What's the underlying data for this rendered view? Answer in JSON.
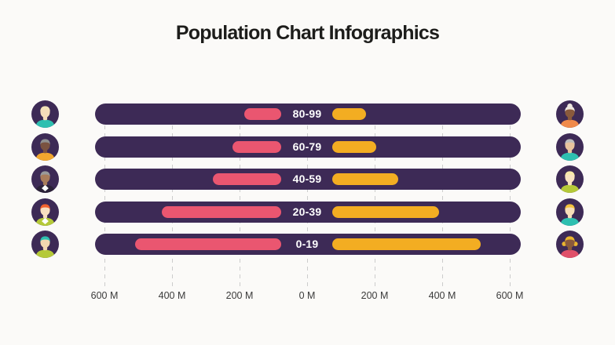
{
  "title": "Population Chart Infographics",
  "colors": {
    "page_bg": "#fbfaf8",
    "bar_bg": "#3d2a56",
    "left_bar": "#ea5670",
    "right_bar": "#f3ad22",
    "bar_label_text": "#ffffff",
    "grid": "#cccccc",
    "title_text": "#1d1d1b",
    "axis_text": "#3b3b3b",
    "avatar_bg": "#3d2a56"
  },
  "chart_data": {
    "type": "bar",
    "variant": "population-pyramid-horizontal",
    "title": "Population Chart Infographics",
    "categories": [
      "80-99",
      "60-79",
      "40-59",
      "20-39",
      "0-19"
    ],
    "series": [
      {
        "name": "left-pink",
        "color": "#ea5670",
        "values": [
          185,
          220,
          280,
          430,
          510
        ]
      },
      {
        "name": "right-yellow",
        "color": "#f3ad22",
        "values": [
          175,
          205,
          270,
          390,
          515
        ]
      }
    ],
    "unit": "M",
    "x_tick_labels": [
      "600 M",
      "400 M",
      "200 M",
      "0 M",
      "200 M",
      "400 M",
      "600 M"
    ],
    "x_tick_values": [
      -600,
      -400,
      -200,
      0,
      200,
      400,
      600
    ],
    "xlim": [
      -650,
      650
    ],
    "grid": "dashed-vertical",
    "legend": "none"
  },
  "avatars": {
    "left": [
      {
        "name": "older-blonde-woman",
        "bg": "#3d2a56",
        "hair": "#f2e3b8",
        "skin": "#f6ddba",
        "shirt": "#2ebfb0",
        "collar": null,
        "bun": false,
        "pigtails": false
      },
      {
        "name": "older-man-beard",
        "bg": "#3d2a56",
        "hair": "#8f8f8f",
        "skin": "#7a5240",
        "shirt": "#f2a72e",
        "collar": null,
        "bun": false,
        "pigtails": false
      },
      {
        "name": "gray-hair-woman-jacket",
        "bg": "#3d2a56",
        "hair": "#9a9a9a",
        "skin": "#a97c5b",
        "shirt": "#2b2138",
        "collar": "#ffffff",
        "bun": false,
        "pigtails": false
      },
      {
        "name": "redhead-woman",
        "bg": "#3d2a56",
        "hair": "#f2622e",
        "skin": "#f8dfc0",
        "shirt": "#b5c938",
        "collar": "#ffffff",
        "bun": false,
        "pigtails": false
      },
      {
        "name": "teal-hair-teen",
        "bg": "#3d2a56",
        "hair": "#2ebfb0",
        "skin": "#f2d8b0",
        "shirt": "#b5c938",
        "collar": null,
        "bun": false,
        "pigtails": false
      }
    ],
    "right": [
      {
        "name": "older-dark-skin-woman",
        "bg": "#3d2a56",
        "hair": "#efe8e0",
        "skin": "#8a5a3c",
        "shirt": "#f08a4b",
        "collar": null,
        "bun": true,
        "pigtails": false
      },
      {
        "name": "gray-hair-woman",
        "bg": "#3d2a56",
        "hair": "#bdbdbd",
        "skin": "#e8c39e",
        "shirt": "#2ebfb0",
        "collar": null,
        "bun": false,
        "pigtails": false
      },
      {
        "name": "pale-blonde-woman",
        "bg": "#3d2a56",
        "hair": "#f7e9a8",
        "skin": "#f8e3c0",
        "shirt": "#b5c938",
        "collar": null,
        "bun": false,
        "pigtails": false
      },
      {
        "name": "golden-blonde-woman",
        "bg": "#3d2a56",
        "hair": "#f2c13d",
        "skin": "#f6ddba",
        "shirt": "#2ebfb0",
        "collar": null,
        "bun": false,
        "pigtails": false
      },
      {
        "name": "girl-pigtails",
        "bg": "#3d2a56",
        "hair": "#eab52f",
        "skin": "#8a5a3c",
        "shirt": "#e0506a",
        "collar": null,
        "bun": false,
        "pigtails": true
      }
    ]
  }
}
